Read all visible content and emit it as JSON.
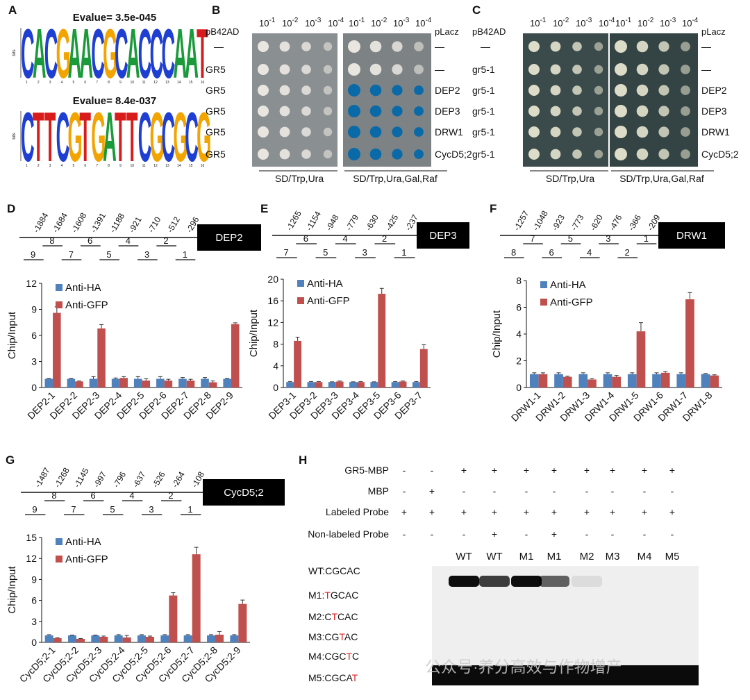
{
  "panel_labels": [
    "A",
    "B",
    "C",
    "D",
    "E",
    "F",
    "G",
    "H"
  ],
  "panel_a": {
    "evalue_1": "Evalue= 3.5e-045",
    "evalue_2": "Evalue= 8.4e-037",
    "bits_label": "bits",
    "motif_1_letters": [
      "C",
      "A",
      "C",
      "G",
      "A",
      "A",
      "C",
      "G",
      "C",
      "A",
      "C",
      "C",
      "C",
      "A",
      "A",
      "T"
    ],
    "motif_2_letters": [
      "C",
      "T",
      "T",
      "C",
      "G",
      "T",
      "G",
      "A",
      "T",
      "T",
      "C",
      "G",
      "C",
      "G",
      "C",
      "G"
    ]
  },
  "panel_b": {
    "row_header": "pB42AD",
    "col_header_right": "pLacz",
    "dilutions": [
      "10-1",
      "10-2",
      "10-3",
      "10-4"
    ],
    "left_rows": [
      "—",
      "GR5",
      "GR5",
      "GR5",
      "GR5",
      "GR5"
    ],
    "right_rows": [
      "—",
      "—",
      "DEP2",
      "DEP3",
      "DRW1",
      "CycD5;2"
    ],
    "medium_left": "SD/Trp,Ura",
    "medium_right": "SD/Trp,Ura,Gal,Raf"
  },
  "panel_c": {
    "row_header": "pB42AD",
    "col_header_right": "pLacz",
    "dilutions": [
      "10-1",
      "10-2",
      "10-3",
      "10-4"
    ],
    "left_rows": [
      "—",
      "gr5-1",
      "gr5-1",
      "gr5-1",
      "gr5-1",
      "gr5-1"
    ],
    "right_rows": [
      "—",
      "—",
      "DEP2",
      "DEP3",
      "DRW1",
      "CycD5;2"
    ],
    "medium_left": "SD/Trp,Ura",
    "medium_right": "SD/Trp,Ura,Gal,Raf"
  },
  "colors": {
    "anti_ha": "#4f81bd",
    "anti_gfp": "#c0504d",
    "xgal_blue": "#0a6aa8"
  },
  "chart_data": [
    {
      "panel": "D",
      "type": "bar",
      "gene": "DEP2",
      "positions": [
        "-1884",
        "-1684",
        "-1608",
        "-1391",
        "-1188",
        "-921",
        "-710",
        "-512",
        "-296"
      ],
      "fragments": [
        "9",
        "8",
        "7",
        "6",
        "5",
        "4",
        "3",
        "2",
        "1"
      ],
      "ylabel": "Chip/Input",
      "ylim": [
        0,
        12
      ],
      "yticks": [
        "0",
        "3",
        "6",
        "9",
        "12"
      ],
      "categories": [
        "DEP2-1",
        "DEP2-2",
        "DEP2-3",
        "DEP2-4",
        "DEP2-5",
        "DEP2-6",
        "DEP2-7",
        "DEP2-8",
        "DEP2-9"
      ],
      "series": [
        {
          "name": "Anti-HA",
          "values": [
            1.0,
            1.0,
            1.0,
            1.0,
            1.0,
            1.0,
            1.0,
            1.0,
            1.0
          ],
          "errors": [
            0.05,
            0.05,
            0.25,
            0.1,
            0.25,
            0.25,
            0.15,
            0.15,
            0.05
          ]
        },
        {
          "name": "Anti-GFP",
          "values": [
            8.6,
            0.7,
            6.8,
            1.1,
            0.8,
            0.8,
            0.8,
            0.6,
            7.3
          ],
          "errors": [
            0.7,
            0.05,
            0.45,
            0.15,
            0.2,
            0.15,
            0.15,
            0.15,
            0.15
          ]
        }
      ]
    },
    {
      "panel": "E",
      "type": "bar",
      "gene": "DEP3",
      "positions": [
        "-1265",
        "-1154",
        "-948",
        "-779",
        "-630",
        "-425",
        "-237"
      ],
      "fragments": [
        "7",
        "6",
        "5",
        "4",
        "3",
        "2",
        "1"
      ],
      "ylabel": "Chip/Input",
      "ylim": [
        0,
        20
      ],
      "yticks": [
        "0",
        "4",
        "8",
        "12",
        "16",
        "20"
      ],
      "categories": [
        "DEP3-1",
        "DEP3-2",
        "DEP3-3",
        "DEP3-4",
        "DEP3-5",
        "DEP3-6",
        "DEP3-7"
      ],
      "series": [
        {
          "name": "Anti-HA",
          "values": [
            1.0,
            1.0,
            1.0,
            1.0,
            1.0,
            1.0,
            1.0
          ],
          "errors": [
            0.1,
            0.1,
            0.05,
            0.05,
            0.05,
            0.1,
            0.1
          ]
        },
        {
          "name": "Anti-GFP",
          "values": [
            8.6,
            1.0,
            1.1,
            1.0,
            17.3,
            1.1,
            7.1
          ],
          "errors": [
            0.7,
            0.1,
            0.1,
            0.1,
            1.0,
            0.1,
            0.8
          ]
        }
      ]
    },
    {
      "panel": "F",
      "type": "bar",
      "gene": "DRW1",
      "positions": [
        "-1257",
        "-1048",
        "-923",
        "-773",
        "-620",
        "-476",
        "-366",
        "-209"
      ],
      "fragments": [
        "8",
        "7",
        "6",
        "5",
        "4",
        "3",
        "2",
        "1"
      ],
      "ylabel": "Chip/Input",
      "ylim": [
        0,
        8
      ],
      "yticks": [
        "0",
        "2",
        "4",
        "6",
        "8"
      ],
      "categories": [
        "DRW1-1",
        "DRW1-2",
        "DRW1-3",
        "DRW1-4",
        "DRW1-5",
        "DRW1-6",
        "DRW1-7",
        "DRW1-8"
      ],
      "series": [
        {
          "name": "Anti-HA",
          "values": [
            1.0,
            1.0,
            1.0,
            1.0,
            1.0,
            1.0,
            1.0,
            1.0
          ],
          "errors": [
            0.1,
            0.1,
            0.1,
            0.1,
            0.1,
            0.1,
            0.1,
            0.05
          ]
        },
        {
          "name": "Anti-GFP",
          "values": [
            1.0,
            0.8,
            0.6,
            0.8,
            4.2,
            1.1,
            6.6,
            0.9
          ],
          "errors": [
            0.1,
            0.05,
            0.05,
            0.1,
            0.65,
            0.1,
            0.5,
            0.05
          ]
        }
      ]
    },
    {
      "panel": "G",
      "type": "bar",
      "gene": "CycD5;2",
      "positions": [
        "-1487",
        "-1268",
        "-1145",
        "-997",
        "-796",
        "-637",
        "-526",
        "-264",
        "-108"
      ],
      "fragments": [
        "9",
        "8",
        "7",
        "6",
        "5",
        "4",
        "3",
        "2",
        "1"
      ],
      "ylabel": "Chip/Input",
      "ylim": [
        0,
        15
      ],
      "yticks": [
        "0",
        "3",
        "6",
        "9",
        "12",
        "15"
      ],
      "categories": [
        "CycD5;2-1",
        "CycD5;2-2",
        "CycD5;2-3",
        "CycD5;2-4",
        "CycD5;2-5",
        "CycD5;2-6",
        "CycD5;2-7",
        "CycD5;2-8",
        "CycD5;2-9"
      ],
      "series": [
        {
          "name": "Anti-HA",
          "values": [
            1.0,
            1.0,
            1.0,
            1.0,
            1.0,
            1.0,
            1.0,
            1.0,
            1.0
          ],
          "errors": [
            0.1,
            0.05,
            0.05,
            0.1,
            0.1,
            0.1,
            0.1,
            0.1,
            0.1
          ]
        },
        {
          "name": "Anti-GFP",
          "values": [
            0.6,
            0.5,
            0.8,
            0.7,
            0.8,
            6.7,
            12.6,
            1.1,
            5.5
          ],
          "errors": [
            0.05,
            0.05,
            0.1,
            0.3,
            0.1,
            0.4,
            1.0,
            0.45,
            0.55
          ]
        }
      ]
    }
  ],
  "panel_h": {
    "row_labels": [
      "GR5-MBP",
      "MBP",
      "Labeled Probe",
      "Non-labeled Probe"
    ],
    "rows": [
      [
        "-",
        "-",
        "+",
        "+",
        "+",
        "+",
        "+",
        "+",
        "+",
        "+"
      ],
      [
        "-",
        "+",
        "-",
        "-",
        "-",
        "-",
        "-",
        "-",
        "-",
        "-"
      ],
      [
        "+",
        "+",
        "+",
        "+",
        "+",
        "+",
        "+",
        "+",
        "+",
        "+"
      ],
      [
        "-",
        "-",
        "-",
        "+",
        "-",
        "+",
        "-",
        "-",
        "-",
        "-"
      ]
    ],
    "lane_labels": [
      "",
      "",
      "WT",
      "WT",
      "M1",
      "M1",
      "M2",
      "M3",
      "M4",
      "M5"
    ],
    "probes": [
      {
        "prefix": "WT:",
        "seq": [
          "C",
          "G",
          "C",
          "A",
          "C"
        ],
        "mut": -1
      },
      {
        "prefix": "M1:",
        "seq": [
          "T",
          "G",
          "C",
          "A",
          "C"
        ],
        "mut": 0
      },
      {
        "prefix": "M2:",
        "seq": [
          "C",
          "T",
          "C",
          "A",
          "C"
        ],
        "mut": 1
      },
      {
        "prefix": "M3:",
        "seq": [
          "C",
          "G",
          "T",
          "A",
          "C"
        ],
        "mut": 2
      },
      {
        "prefix": "M4:",
        "seq": [
          "C",
          "G",
          "C",
          "T",
          "C"
        ],
        "mut": 3
      },
      {
        "prefix": "M5:",
        "seq": [
          "C",
          "G",
          "C",
          "A",
          "T"
        ],
        "mut": 4
      }
    ],
    "band_intensity": [
      0,
      0,
      0.95,
      0.75,
      0.95,
      0.6,
      0.08,
      0,
      0,
      0
    ]
  },
  "watermark": "公众号·养分高效与作物增产"
}
